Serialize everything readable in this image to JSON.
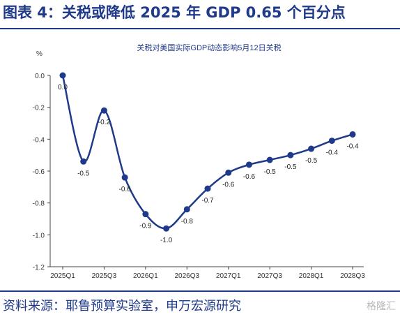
{
  "header": {
    "title": "图表 4：关税或降低 2025 年 GDP 0.65 个百分点"
  },
  "footer": {
    "source": "资料来源：耶鲁预算实验室，申万宏源研究",
    "watermark": "格隆汇"
  },
  "chart_data": {
    "type": "line",
    "title": "关税对美国实际GDP动态影响5月12日关税",
    "ylabel": "%",
    "xlabel": "",
    "ylim": [
      -1.2,
      0.0
    ],
    "yticks": [
      "0.0",
      "-0.2",
      "-0.4",
      "-0.6",
      "-0.8",
      "-1.0",
      "-1.2"
    ],
    "xtick_labels": [
      "2025Q1",
      "2025Q3",
      "2026Q1",
      "2026Q3",
      "2027Q1",
      "2027Q3",
      "2028Q1",
      "2028Q3"
    ],
    "x": [
      "2025Q1",
      "2025Q2",
      "2025Q3",
      "2025Q4",
      "2026Q1",
      "2026Q2",
      "2026Q3",
      "2026Q4",
      "2027Q1",
      "2027Q2",
      "2027Q3",
      "2027Q4",
      "2028Q1",
      "2028Q2",
      "2028Q3"
    ],
    "series": [
      {
        "values": [
          0.0,
          -0.54,
          -0.22,
          -0.64,
          -0.87,
          -0.96,
          -0.84,
          -0.71,
          -0.61,
          -0.56,
          -0.53,
          -0.5,
          -0.46,
          -0.41,
          -0.37
        ]
      }
    ],
    "data_labels": [
      "0.0",
      "-0.5",
      "-0.2",
      "-0.6",
      "-0.9",
      "-1.0",
      "-0.8",
      "-0.7",
      "-0.6",
      "-0.6",
      "-0.5",
      "-0.5",
      "-0.5",
      "-0.4",
      "-0.4"
    ],
    "color": "#1f3a8a",
    "grid": false
  }
}
